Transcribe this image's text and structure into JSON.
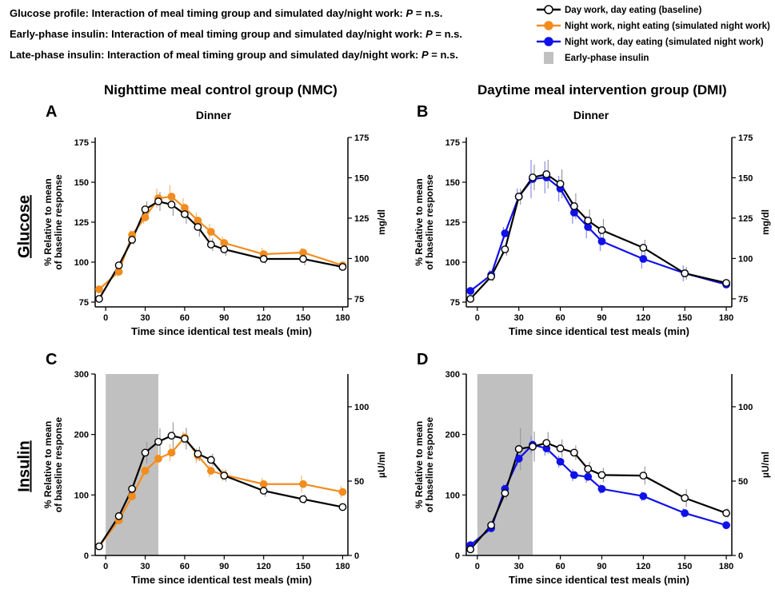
{
  "notes": [
    {
      "prefix": "Glucose profile: Interaction of meal timing group and simulated day/night work: ",
      "p": "P",
      "suffix": " = n.s."
    },
    {
      "prefix": "Early-phase insulin: Interaction of meal timing group and simulated day/night work: ",
      "p": "P",
      "suffix": " = n.s."
    },
    {
      "prefix": "Late-phase insulin: Interaction of meal timing group and simulated day/night work: ",
      "p": "P",
      "suffix": " = n.s."
    }
  ],
  "legend": [
    {
      "label": "Day work, day eating (baseline)",
      "color": "#000000",
      "fill": "#ffffff"
    },
    {
      "label": "Night work, night eating (simulated night work)",
      "color": "#f28c1e",
      "fill": "#f28c1e"
    },
    {
      "label": "Night work, day eating (simulated night work)",
      "color": "#1010e8",
      "fill": "#1010e8"
    },
    {
      "label": "Early-phase insulin",
      "color": "#c0c0c0",
      "fill": "#c0c0c0"
    }
  ],
  "group_titles": [
    "Nighttime meal control group (NMC)",
    "Daytime meal intervention group (DMI)"
  ],
  "row_labels": [
    "Glucose",
    "Insulin"
  ],
  "chart_data": [
    {
      "type": "line",
      "panel": "A",
      "subtitle": "Dinner",
      "xlabel": "Time since identical test meals (min)",
      "ylabel": "% Relative to mean of baseline response",
      "y2label": "mg/dl",
      "xlim": [
        -8,
        184
      ],
      "ylim": [
        72,
        178
      ],
      "y2lim": [
        70,
        175
      ],
      "xticks": [
        0,
        30,
        60,
        90,
        120,
        150,
        180
      ],
      "yticks": [
        75,
        100,
        125,
        150,
        175
      ],
      "y2ticks": [
        75,
        100,
        125,
        150,
        175
      ],
      "shade": null,
      "series": [
        {
          "name": "Day work, day eating (baseline)",
          "color": "#000000",
          "fill": "#ffffff",
          "x": [
            -5,
            10,
            20,
            30,
            40,
            50,
            60,
            70,
            80,
            90,
            120,
            150,
            180
          ],
          "y": [
            77,
            98,
            114,
            133,
            138,
            136,
            130,
            122,
            111,
            108,
            102,
            102,
            97
          ],
          "err": [
            1,
            2,
            3,
            5,
            6,
            7,
            6,
            6,
            4,
            4,
            3,
            4,
            2
          ]
        },
        {
          "name": "Night work, night eating (simulated night work)",
          "color": "#f28c1e",
          "fill": "#f28c1e",
          "x": [
            -5,
            10,
            20,
            30,
            40,
            50,
            60,
            70,
            80,
            90,
            120,
            150,
            180
          ],
          "y": [
            83,
            94,
            117,
            128,
            140,
            141,
            134,
            126,
            119,
            112,
            105,
            106,
            98
          ],
          "err": [
            2,
            3,
            3,
            4,
            6,
            7,
            6,
            5,
            5,
            4,
            4,
            3,
            2
          ]
        }
      ]
    },
    {
      "type": "line",
      "panel": "B",
      "subtitle": "Dinner",
      "xlabel": "Time since identical test meals (min)",
      "ylabel": "% Relative to mean of baseline response",
      "y2label": "mg/dl",
      "xlim": [
        -8,
        184
      ],
      "ylim": [
        72,
        178
      ],
      "y2lim": [
        70,
        175
      ],
      "xticks": [
        0,
        30,
        60,
        90,
        120,
        150,
        180
      ],
      "yticks": [
        75,
        100,
        125,
        150,
        175
      ],
      "y2ticks": [
        75,
        100,
        125,
        150,
        175
      ],
      "shade": null,
      "series": [
        {
          "name": "Day work, day eating (baseline)",
          "color": "#000000",
          "fill": "#ffffff",
          "x": [
            -5,
            10,
            20,
            30,
            40,
            50,
            60,
            70,
            80,
            90,
            120,
            150,
            180
          ],
          "y": [
            77,
            91,
            108,
            141,
            153,
            155,
            149,
            135,
            126,
            120,
            109,
            93,
            87
          ],
          "err": [
            2,
            3,
            4,
            5,
            8,
            9,
            9,
            8,
            7,
            7,
            5,
            4,
            2
          ]
        },
        {
          "name": "Night work, day eating (simulated night work)",
          "color": "#1010e8",
          "fill": "#1010e8",
          "x": [
            -5,
            10,
            20,
            30,
            40,
            50,
            60,
            70,
            80,
            90,
            120,
            150,
            180
          ],
          "y": [
            82,
            92,
            118,
            141,
            152,
            153,
            146,
            131,
            122,
            113,
            102,
            93,
            86
          ],
          "err": [
            2,
            3,
            4,
            5,
            12,
            10,
            8,
            7,
            7,
            6,
            6,
            5,
            2
          ]
        }
      ]
    },
    {
      "type": "line",
      "panel": "C",
      "subtitle": "",
      "xlabel": "Time since identical test meals (min)",
      "ylabel": "% Relative to mean of baseline response",
      "y2label": "µU/ml",
      "xlim": [
        -8,
        184
      ],
      "ylim": [
        0,
        300
      ],
      "y2lim": [
        0,
        122
      ],
      "xticks": [
        0,
        30,
        60,
        90,
        120,
        150,
        180
      ],
      "yticks": [
        0,
        100,
        200,
        300
      ],
      "y2ticks": [
        0,
        50,
        100
      ],
      "shade": [
        0,
        40
      ],
      "series": [
        {
          "name": "Day work, day eating (baseline)",
          "color": "#000000",
          "fill": "#ffffff",
          "x": [
            -5,
            10,
            20,
            30,
            40,
            50,
            60,
            70,
            80,
            90,
            120,
            150,
            180
          ],
          "y": [
            15,
            65,
            110,
            170,
            188,
            198,
            193,
            168,
            158,
            132,
            107,
            93,
            80
          ],
          "err": [
            2,
            5,
            10,
            18,
            22,
            22,
            18,
            12,
            10,
            10,
            10,
            8,
            6
          ]
        },
        {
          "name": "Night work, night eating (simulated night work)",
          "color": "#f28c1e",
          "fill": "#f28c1e",
          "x": [
            -5,
            10,
            20,
            30,
            40,
            50,
            60,
            70,
            80,
            90,
            120,
            150,
            180
          ],
          "y": [
            15,
            58,
            98,
            140,
            160,
            170,
            195,
            165,
            140,
            133,
            118,
            118,
            105
          ],
          "err": [
            2,
            5,
            10,
            12,
            14,
            14,
            10,
            12,
            10,
            10,
            10,
            14,
            10
          ]
        }
      ]
    },
    {
      "type": "line",
      "panel": "D",
      "subtitle": "",
      "xlabel": "Time since identical test meals (min)",
      "ylabel": "% Relative to mean of baseline response",
      "y2label": "µU/ml",
      "xlim": [
        -8,
        184
      ],
      "ylim": [
        0,
        300
      ],
      "y2lim": [
        0,
        122
      ],
      "xticks": [
        0,
        30,
        60,
        90,
        120,
        150,
        180
      ],
      "yticks": [
        0,
        100,
        200,
        300
      ],
      "y2ticks": [
        0,
        50,
        100
      ],
      "shade": [
        0,
        40
      ],
      "series": [
        {
          "name": "Day work, day eating (baseline)",
          "color": "#000000",
          "fill": "#ffffff",
          "x": [
            -5,
            10,
            20,
            30,
            40,
            50,
            60,
            70,
            80,
            90,
            120,
            150,
            180
          ],
          "y": [
            10,
            50,
            103,
            176,
            180,
            186,
            177,
            170,
            143,
            133,
            132,
            95,
            70
          ],
          "err": [
            2,
            6,
            10,
            35,
            25,
            18,
            15,
            12,
            12,
            12,
            15,
            15,
            8
          ]
        },
        {
          "name": "Night work, day eating (simulated night work)",
          "color": "#1010e8",
          "fill": "#1010e8",
          "x": [
            -5,
            10,
            20,
            30,
            40,
            50,
            60,
            70,
            80,
            90,
            120,
            150,
            180
          ],
          "y": [
            17,
            45,
            110,
            160,
            183,
            177,
            155,
            133,
            130,
            110,
            98,
            70,
            50
          ],
          "err": [
            2,
            5,
            8,
            12,
            14,
            12,
            10,
            10,
            10,
            8,
            8,
            8,
            6
          ]
        }
      ]
    }
  ]
}
